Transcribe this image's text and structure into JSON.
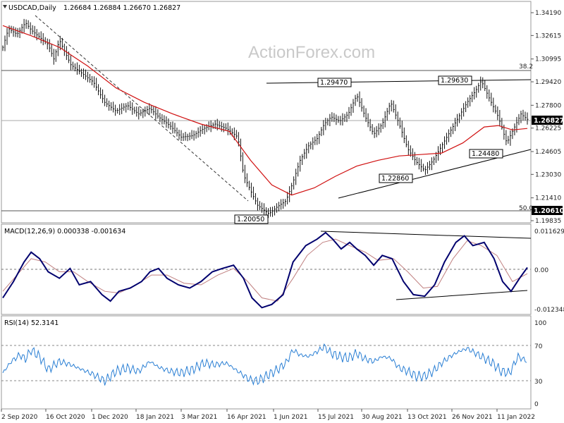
{
  "header": {
    "symbol": "USDCAD,Daily",
    "ohlc": "1.26684 1.26884 1.26670 1.26827"
  },
  "watermark": "ActionForex.com",
  "colors": {
    "price": "#111111",
    "sma": "#d01010",
    "macd": "#00006e",
    "signal": "#c08080",
    "rsi": "#2a7fd4",
    "grid": "#999999"
  },
  "chart_data": [
    {
      "type": "line",
      "panel": "price",
      "title": "USDCAD,Daily",
      "price_axis_ticks": [
        "1.34190",
        "1.32615",
        "1.30995",
        "1.29420",
        "1.27800",
        "1.26225",
        "1.24605",
        "1.23030",
        "1.21410",
        "1.19835"
      ],
      "current_price_label": "1.26827",
      "support_label": "1.20610",
      "fib_labels": [
        "38.2",
        "50.0"
      ],
      "pivot_labels": [
        "1.20050",
        "1.29470",
        "1.22860",
        "1.29630",
        "1.24480"
      ],
      "x_labels": [
        "2 Sep 2020",
        "16 Oct 2020",
        "1 Dec 2020",
        "18 Jan 2021",
        "3 Mar 2021",
        "16 Apr 2021",
        "1 Jun 2021",
        "15 Jul 2021",
        "30 Aug 2021",
        "13 Oct 2021",
        "26 Nov 2021",
        "11 Jan 2022"
      ],
      "close_path": [
        [
          0,
          1.318
        ],
        [
          8,
          1.331
        ],
        [
          20,
          1.327
        ],
        [
          32,
          1.335
        ],
        [
          40,
          1.33
        ],
        [
          52,
          1.325
        ],
        [
          64,
          1.32
        ],
        [
          72,
          1.31
        ],
        [
          80,
          1.323
        ],
        [
          96,
          1.306
        ],
        [
          112,
          1.3
        ],
        [
          128,
          1.294
        ],
        [
          144,
          1.28
        ],
        [
          160,
          1.274
        ],
        [
          176,
          1.278
        ],
        [
          192,
          1.272
        ],
        [
          208,
          1.276
        ],
        [
          220,
          1.27
        ],
        [
          236,
          1.264
        ],
        [
          252,
          1.256
        ],
        [
          268,
          1.257
        ],
        [
          284,
          1.262
        ],
        [
          300,
          1.265
        ],
        [
          316,
          1.262
        ],
        [
          332,
          1.256
        ],
        [
          340,
          1.23
        ],
        [
          352,
          1.217
        ],
        [
          360,
          1.209
        ],
        [
          368,
          1.206
        ],
        [
          376,
          1.203
        ],
        [
          388,
          1.208
        ],
        [
          400,
          1.212
        ],
        [
          410,
          1.225
        ],
        [
          420,
          1.24
        ],
        [
          432,
          1.25
        ],
        [
          444,
          1.255
        ],
        [
          454,
          1.265
        ],
        [
          464,
          1.27
        ],
        [
          476,
          1.267
        ],
        [
          488,
          1.272
        ],
        [
          500,
          1.285
        ],
        [
          512,
          1.27
        ],
        [
          524,
          1.258
        ],
        [
          536,
          1.265
        ],
        [
          548,
          1.28
        ],
        [
          560,
          1.265
        ],
        [
          572,
          1.248
        ],
        [
          584,
          1.239
        ],
        [
          596,
          1.233
        ],
        [
          608,
          1.24
        ],
        [
          620,
          1.25
        ],
        [
          632,
          1.26
        ],
        [
          644,
          1.27
        ],
        [
          656,
          1.28
        ],
        [
          668,
          1.288
        ],
        [
          676,
          1.295
        ],
        [
          688,
          1.282
        ],
        [
          700,
          1.27
        ],
        [
          712,
          1.252
        ],
        [
          720,
          1.26
        ],
        [
          732,
          1.272
        ],
        [
          741,
          1.2683
        ]
      ],
      "sma_path": [
        [
          0,
          1.333
        ],
        [
          40,
          1.326
        ],
        [
          80,
          1.318
        ],
        [
          120,
          1.305
        ],
        [
          160,
          1.29
        ],
        [
          200,
          1.28
        ],
        [
          240,
          1.272
        ],
        [
          280,
          1.265
        ],
        [
          320,
          1.26
        ],
        [
          350,
          1.24
        ],
        [
          380,
          1.223
        ],
        [
          408,
          1.216
        ],
        [
          440,
          1.221
        ],
        [
          470,
          1.229
        ],
        [
          500,
          1.236
        ],
        [
          530,
          1.24
        ],
        [
          560,
          1.243
        ],
        [
          590,
          1.244
        ],
        [
          620,
          1.245
        ],
        [
          650,
          1.252
        ],
        [
          680,
          1.263
        ],
        [
          700,
          1.264
        ],
        [
          720,
          1.261
        ],
        [
          741,
          1.262
        ]
      ]
    },
    {
      "type": "line",
      "panel": "macd",
      "title": "MACD(12,26,9) 0.000338 -0.001634",
      "axis_ticks": [
        "0.011629",
        "0.00",
        "-0.012348"
      ],
      "zero_label": "0.00",
      "ylim": [
        -0.012348,
        0.011629
      ],
      "macd": [
        [
          0,
          -0.009
        ],
        [
          15,
          -0.004
        ],
        [
          30,
          0.002
        ],
        [
          40,
          0.005
        ],
        [
          52,
          0.003
        ],
        [
          64,
          -0.001
        ],
        [
          80,
          -0.003
        ],
        [
          95,
          0.0
        ],
        [
          108,
          -0.005
        ],
        [
          124,
          -0.004
        ],
        [
          140,
          -0.008
        ],
        [
          152,
          -0.01
        ],
        [
          164,
          -0.007
        ],
        [
          180,
          -0.006
        ],
        [
          196,
          -0.004
        ],
        [
          208,
          -0.001
        ],
        [
          220,
          0.0
        ],
        [
          232,
          -0.003
        ],
        [
          248,
          -0.005
        ],
        [
          264,
          -0.006
        ],
        [
          280,
          -0.004
        ],
        [
          296,
          -0.001
        ],
        [
          310,
          0.0
        ],
        [
          326,
          0.001
        ],
        [
          340,
          -0.003
        ],
        [
          352,
          -0.009
        ],
        [
          366,
          -0.012
        ],
        [
          380,
          -0.011
        ],
        [
          396,
          -0.008
        ],
        [
          410,
          0.002
        ],
        [
          428,
          0.007
        ],
        [
          444,
          0.009
        ],
        [
          456,
          0.011
        ],
        [
          466,
          0.009
        ],
        [
          478,
          0.006
        ],
        [
          490,
          0.008
        ],
        [
          500,
          0.006
        ],
        [
          512,
          0.004
        ],
        [
          524,
          0.001
        ],
        [
          536,
          0.004
        ],
        [
          550,
          0.003
        ],
        [
          566,
          -0.004
        ],
        [
          580,
          -0.008
        ],
        [
          596,
          -0.0085
        ],
        [
          610,
          -0.005
        ],
        [
          624,
          0.002
        ],
        [
          640,
          0.008
        ],
        [
          652,
          0.01
        ],
        [
          664,
          0.007
        ],
        [
          680,
          0.008
        ],
        [
          694,
          0.003
        ],
        [
          706,
          -0.004
        ],
        [
          718,
          -0.007
        ],
        [
          730,
          -0.003
        ],
        [
          741,
          0.0003
        ]
      ],
      "signal": [
        [
          0,
          -0.007
        ],
        [
          20,
          -0.002
        ],
        [
          40,
          0.003
        ],
        [
          60,
          0.002
        ],
        [
          80,
          -0.001
        ],
        [
          100,
          -0.001
        ],
        [
          120,
          -0.004
        ],
        [
          144,
          -0.007
        ],
        [
          164,
          -0.0075
        ],
        [
          188,
          -0.005
        ],
        [
          210,
          -0.002
        ],
        [
          232,
          -0.002
        ],
        [
          256,
          -0.0045
        ],
        [
          280,
          -0.005
        ],
        [
          304,
          -0.002
        ],
        [
          326,
          0.0
        ],
        [
          346,
          -0.004
        ],
        [
          366,
          -0.009
        ],
        [
          388,
          -0.01
        ],
        [
          410,
          -0.003
        ],
        [
          430,
          0.004
        ],
        [
          452,
          0.008
        ],
        [
          470,
          0.009
        ],
        [
          490,
          0.007
        ],
        [
          512,
          0.005
        ],
        [
          530,
          0.0025
        ],
        [
          552,
          0.003
        ],
        [
          572,
          -0.001
        ],
        [
          594,
          -0.006
        ],
        [
          614,
          -0.0055
        ],
        [
          636,
          0.003
        ],
        [
          656,
          0.0085
        ],
        [
          676,
          0.007
        ],
        [
          698,
          0.004
        ],
        [
          720,
          -0.004
        ],
        [
          741,
          -0.0016
        ]
      ]
    },
    {
      "type": "line",
      "panel": "rsi",
      "title": "RSI(14) 52.3141",
      "axis_ticks": [
        "100",
        "70",
        "30",
        "0"
      ],
      "ylim": [
        0,
        100
      ],
      "rsi": [
        [
          0,
          38
        ],
        [
          12,
          52
        ],
        [
          24,
          60
        ],
        [
          32,
          55
        ],
        [
          40,
          66
        ],
        [
          52,
          58
        ],
        [
          64,
          42
        ],
        [
          80,
          52
        ],
        [
          96,
          48
        ],
        [
          112,
          42
        ],
        [
          128,
          36
        ],
        [
          144,
          28
        ],
        [
          160,
          40
        ],
        [
          176,
          44
        ],
        [
          192,
          40
        ],
        [
          208,
          52
        ],
        [
          220,
          45
        ],
        [
          236,
          40
        ],
        [
          252,
          38
        ],
        [
          268,
          42
        ],
        [
          284,
          50
        ],
        [
          300,
          48
        ],
        [
          316,
          50
        ],
        [
          332,
          40
        ],
        [
          348,
          30
        ],
        [
          360,
          28
        ],
        [
          372,
          34
        ],
        [
          388,
          42
        ],
        [
          400,
          50
        ],
        [
          410,
          66
        ],
        [
          420,
          60
        ],
        [
          432,
          58
        ],
        [
          444,
          64
        ],
        [
          454,
          70
        ],
        [
          464,
          62
        ],
        [
          476,
          58
        ],
        [
          488,
          56
        ],
        [
          500,
          62
        ],
        [
          512,
          55
        ],
        [
          524,
          52
        ],
        [
          536,
          58
        ],
        [
          548,
          56
        ],
        [
          560,
          44
        ],
        [
          572,
          40
        ],
        [
          584,
          34
        ],
        [
          596,
          34
        ],
        [
          608,
          40
        ],
        [
          620,
          50
        ],
        [
          632,
          58
        ],
        [
          644,
          64
        ],
        [
          656,
          68
        ],
        [
          668,
          62
        ],
        [
          680,
          56
        ],
        [
          692,
          50
        ],
        [
          704,
          40
        ],
        [
          716,
          38
        ],
        [
          728,
          58
        ],
        [
          741,
          52
        ]
      ]
    }
  ]
}
